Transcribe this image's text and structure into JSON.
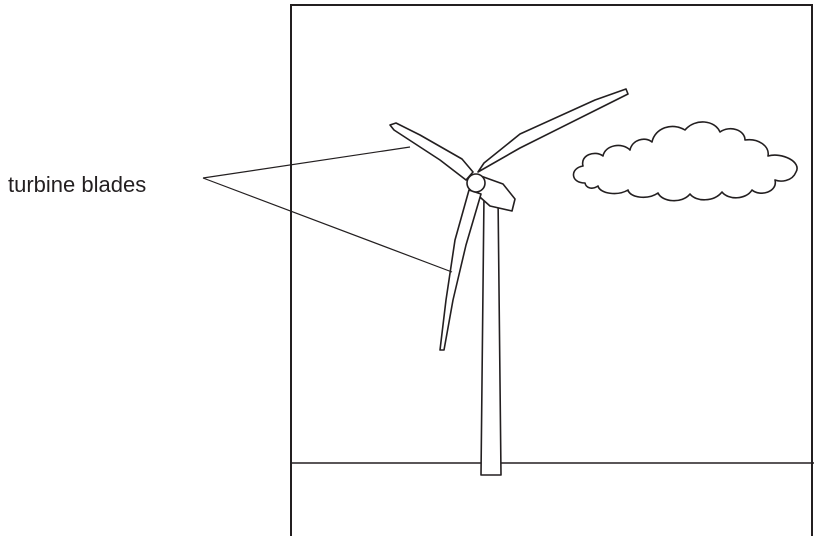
{
  "annotation": {
    "text": "turbine blades"
  }
}
